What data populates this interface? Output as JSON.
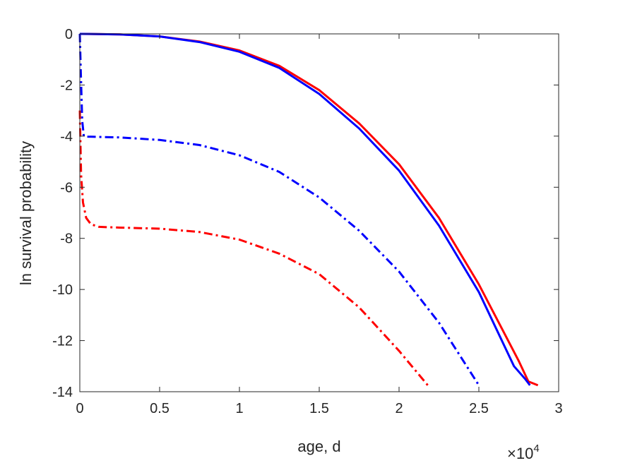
{
  "chart_data": {
    "type": "line",
    "title": "",
    "xlabel": "age, d",
    "ylabel": "ln survival probability",
    "x_exponent_base": "×10",
    "x_exponent_power": "4",
    "xlim": [
      0,
      30000
    ],
    "ylim": [
      -14,
      0
    ],
    "xticks": [
      0,
      5000,
      10000,
      15000,
      20000,
      25000,
      30000
    ],
    "xtick_labels": [
      "0",
      "0.5",
      "1",
      "1.5",
      "2",
      "2.5",
      "3"
    ],
    "yticks": [
      0,
      -2,
      -4,
      -6,
      -8,
      -10,
      -12,
      -14
    ],
    "ytick_labels": [
      "0",
      "-2",
      "-4",
      "-6",
      "-8",
      "-10",
      "-12",
      "-14"
    ],
    "grid": false,
    "legend": false,
    "series": [
      {
        "color": "#ff0000",
        "style": "solid",
        "x": [
          0,
          2500,
          5000,
          7500,
          10000,
          12500,
          15000,
          17500,
          20000,
          22500,
          25000,
          27500,
          28100,
          28700
        ],
        "y": [
          0,
          -0.02,
          -0.1,
          -0.3,
          -0.65,
          -1.25,
          -2.2,
          -3.5,
          -5.1,
          -7.2,
          -9.8,
          -12.8,
          -13.6,
          -13.75
        ]
      },
      {
        "color": "#0000ff",
        "style": "solid",
        "x": [
          0,
          2500,
          5000,
          7500,
          10000,
          12500,
          15000,
          17500,
          20000,
          22500,
          25000,
          27200,
          27900,
          28200
        ],
        "y": [
          0,
          -0.02,
          -0.1,
          -0.32,
          -0.7,
          -1.33,
          -2.35,
          -3.7,
          -5.35,
          -7.5,
          -10.1,
          -13.0,
          -13.5,
          -13.75
        ]
      },
      {
        "color": "#0000ff",
        "style": "dashdot",
        "x": [
          0,
          60,
          150,
          250,
          500,
          1000,
          2500,
          5000,
          7500,
          10000,
          12500,
          15000,
          17500,
          20000,
          22500,
          25000
        ],
        "y": [
          0,
          -1.5,
          -3.4,
          -4.0,
          -4.02,
          -4.03,
          -4.05,
          -4.15,
          -4.35,
          -4.75,
          -5.4,
          -6.4,
          -7.7,
          -9.3,
          -11.3,
          -13.75
        ]
      },
      {
        "color": "#ff0000",
        "style": "dashdot",
        "x": [
          0,
          80,
          200,
          400,
          700,
          1200,
          2500,
          5000,
          7500,
          10000,
          12500,
          15000,
          17500,
          20000,
          21800
        ],
        "y": [
          -3.0,
          -5.5,
          -6.6,
          -7.2,
          -7.45,
          -7.55,
          -7.58,
          -7.62,
          -7.75,
          -8.05,
          -8.6,
          -9.4,
          -10.7,
          -12.4,
          -13.75
        ]
      }
    ]
  }
}
